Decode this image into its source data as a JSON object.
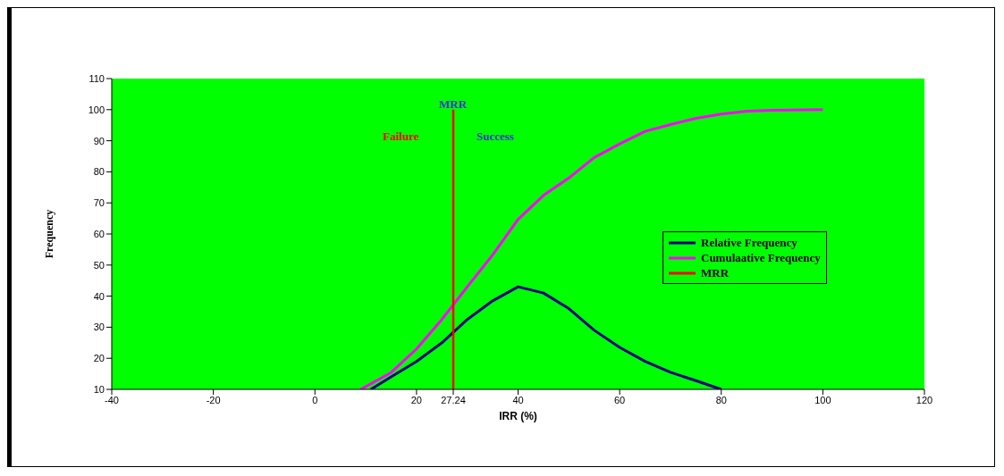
{
  "chart_data": {
    "type": "line",
    "xlabel": "IRR (%)",
    "ylabel": "Frequency",
    "xlim": [
      -40,
      120
    ],
    "xticks": [
      -40,
      -20,
      0,
      20,
      {
        "value": 27.24,
        "label": "27.24"
      },
      40,
      60,
      80,
      100,
      120
    ],
    "ylim": [
      10,
      110
    ],
    "yticks": [
      10,
      20,
      30,
      40,
      50,
      60,
      70,
      80,
      90,
      100,
      110
    ],
    "grid": false,
    "legend": "right",
    "marker": "none",
    "line_style": "solid",
    "series": [
      {
        "name": "Relative Frequency",
        "color": "#000080",
        "x": [
          11,
          15,
          20,
          25,
          30,
          35,
          40,
          45,
          50,
          55,
          60,
          65,
          70,
          75,
          80
        ],
        "values": [
          10,
          14,
          19,
          25,
          32.5,
          38.5,
          43,
          41,
          36,
          29,
          23.5,
          19,
          15.5,
          12.8,
          10
        ]
      },
      {
        "name": "Cumulaative Frequency",
        "color": "#ff00ff",
        "x": [
          9,
          15,
          20,
          25,
          30,
          35,
          40,
          45,
          50,
          55,
          60,
          65,
          70,
          75,
          80,
          85,
          90,
          100
        ],
        "values": [
          10,
          15.4,
          23,
          32.5,
          43,
          53.3,
          64.7,
          72.4,
          78,
          84.6,
          89,
          93,
          95.2,
          97.2,
          98.6,
          99.5,
          99.8,
          100
        ]
      },
      {
        "name": "MRR",
        "color": "#ff0000",
        "x": [
          27.24,
          27.24
        ],
        "values": [
          10,
          100
        ]
      }
    ],
    "annotations": [
      "MRR",
      "Failure",
      "Success"
    ]
  }
}
